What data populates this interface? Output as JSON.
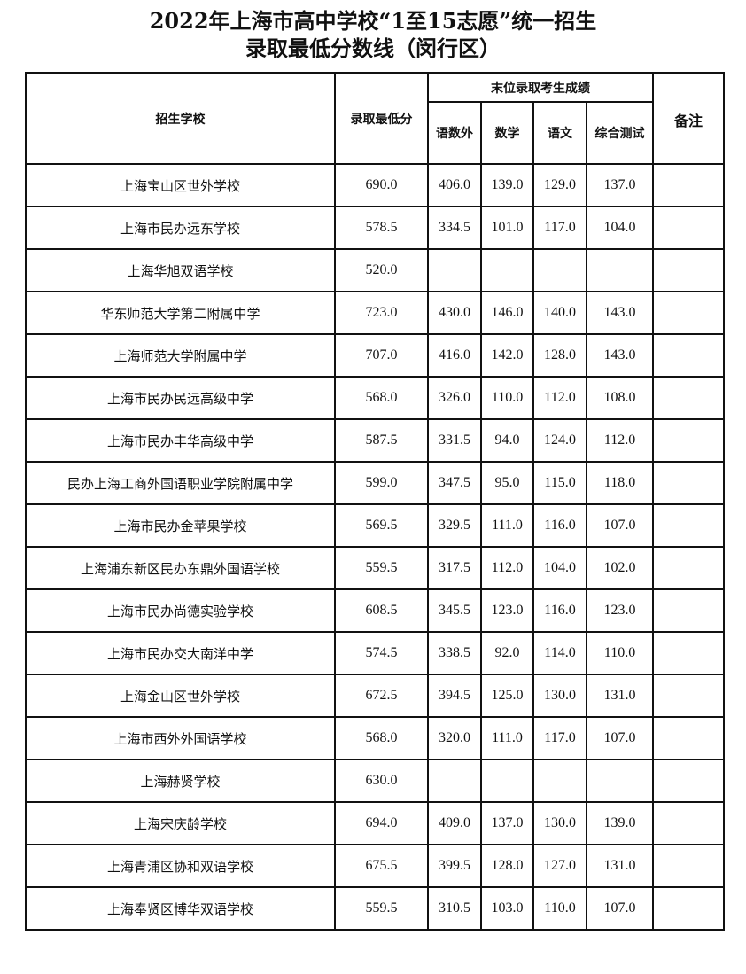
{
  "title": {
    "line1": "2022年上海市高中学校“1至15志愿”统一招生",
    "line2": "录取最低分数线（闵行区）"
  },
  "table": {
    "headers": {
      "school": "招生学校",
      "min_score": "录取最低分",
      "last_group": "末位录取考生成绩",
      "sub": [
        "语数外",
        "数学",
        "语文",
        "综合测试"
      ],
      "remark": "备注"
    },
    "rows": [
      {
        "school": "上海宝山区世外学校",
        "min": "690.0",
        "ysw": "406.0",
        "math": "139.0",
        "chinese": "129.0",
        "comp": "137.0",
        "remark": ""
      },
      {
        "school": "上海市民办远东学校",
        "min": "578.5",
        "ysw": "334.5",
        "math": "101.0",
        "chinese": "117.0",
        "comp": "104.0",
        "remark": ""
      },
      {
        "school": "上海华旭双语学校",
        "min": "520.0",
        "ysw": "",
        "math": "",
        "chinese": "",
        "comp": "",
        "remark": ""
      },
      {
        "school": "华东师范大学第二附属中学",
        "min": "723.0",
        "ysw": "430.0",
        "math": "146.0",
        "chinese": "140.0",
        "comp": "143.0",
        "remark": ""
      },
      {
        "school": "上海师范大学附属中学",
        "min": "707.0",
        "ysw": "416.0",
        "math": "142.0",
        "chinese": "128.0",
        "comp": "143.0",
        "remark": ""
      },
      {
        "school": "上海市民办民远高级中学",
        "min": "568.0",
        "ysw": "326.0",
        "math": "110.0",
        "chinese": "112.0",
        "comp": "108.0",
        "remark": ""
      },
      {
        "school": "上海市民办丰华高级中学",
        "min": "587.5",
        "ysw": "331.5",
        "math": "94.0",
        "chinese": "124.0",
        "comp": "112.0",
        "remark": ""
      },
      {
        "school": "民办上海工商外国语职业学院附属中学",
        "min": "599.0",
        "ysw": "347.5",
        "math": "95.0",
        "chinese": "115.0",
        "comp": "118.0",
        "remark": ""
      },
      {
        "school": "上海市民办金苹果学校",
        "min": "569.5",
        "ysw": "329.5",
        "math": "111.0",
        "chinese": "116.0",
        "comp": "107.0",
        "remark": ""
      },
      {
        "school": "上海浦东新区民办东鼎外国语学校",
        "min": "559.5",
        "ysw": "317.5",
        "math": "112.0",
        "chinese": "104.0",
        "comp": "102.0",
        "remark": ""
      },
      {
        "school": "上海市民办尚德实验学校",
        "min": "608.5",
        "ysw": "345.5",
        "math": "123.0",
        "chinese": "116.0",
        "comp": "123.0",
        "remark": ""
      },
      {
        "school": "上海市民办交大南洋中学",
        "min": "574.5",
        "ysw": "338.5",
        "math": "92.0",
        "chinese": "114.0",
        "comp": "110.0",
        "remark": ""
      },
      {
        "school": "上海金山区世外学校",
        "min": "672.5",
        "ysw": "394.5",
        "math": "125.0",
        "chinese": "130.0",
        "comp": "131.0",
        "remark": ""
      },
      {
        "school": "上海市西外外国语学校",
        "min": "568.0",
        "ysw": "320.0",
        "math": "111.0",
        "chinese": "117.0",
        "comp": "107.0",
        "remark": ""
      },
      {
        "school": "上海赫贤学校",
        "min": "630.0",
        "ysw": "",
        "math": "",
        "chinese": "",
        "comp": "",
        "remark": ""
      },
      {
        "school": "上海宋庆龄学校",
        "min": "694.0",
        "ysw": "409.0",
        "math": "137.0",
        "chinese": "130.0",
        "comp": "139.0",
        "remark": ""
      },
      {
        "school": "上海青浦区协和双语学校",
        "min": "675.5",
        "ysw": "399.5",
        "math": "128.0",
        "chinese": "127.0",
        "comp": "131.0",
        "remark": ""
      },
      {
        "school": "上海奉贤区博华双语学校",
        "min": "559.5",
        "ysw": "310.5",
        "math": "103.0",
        "chinese": "110.0",
        "comp": "107.0",
        "remark": ""
      }
    ]
  }
}
